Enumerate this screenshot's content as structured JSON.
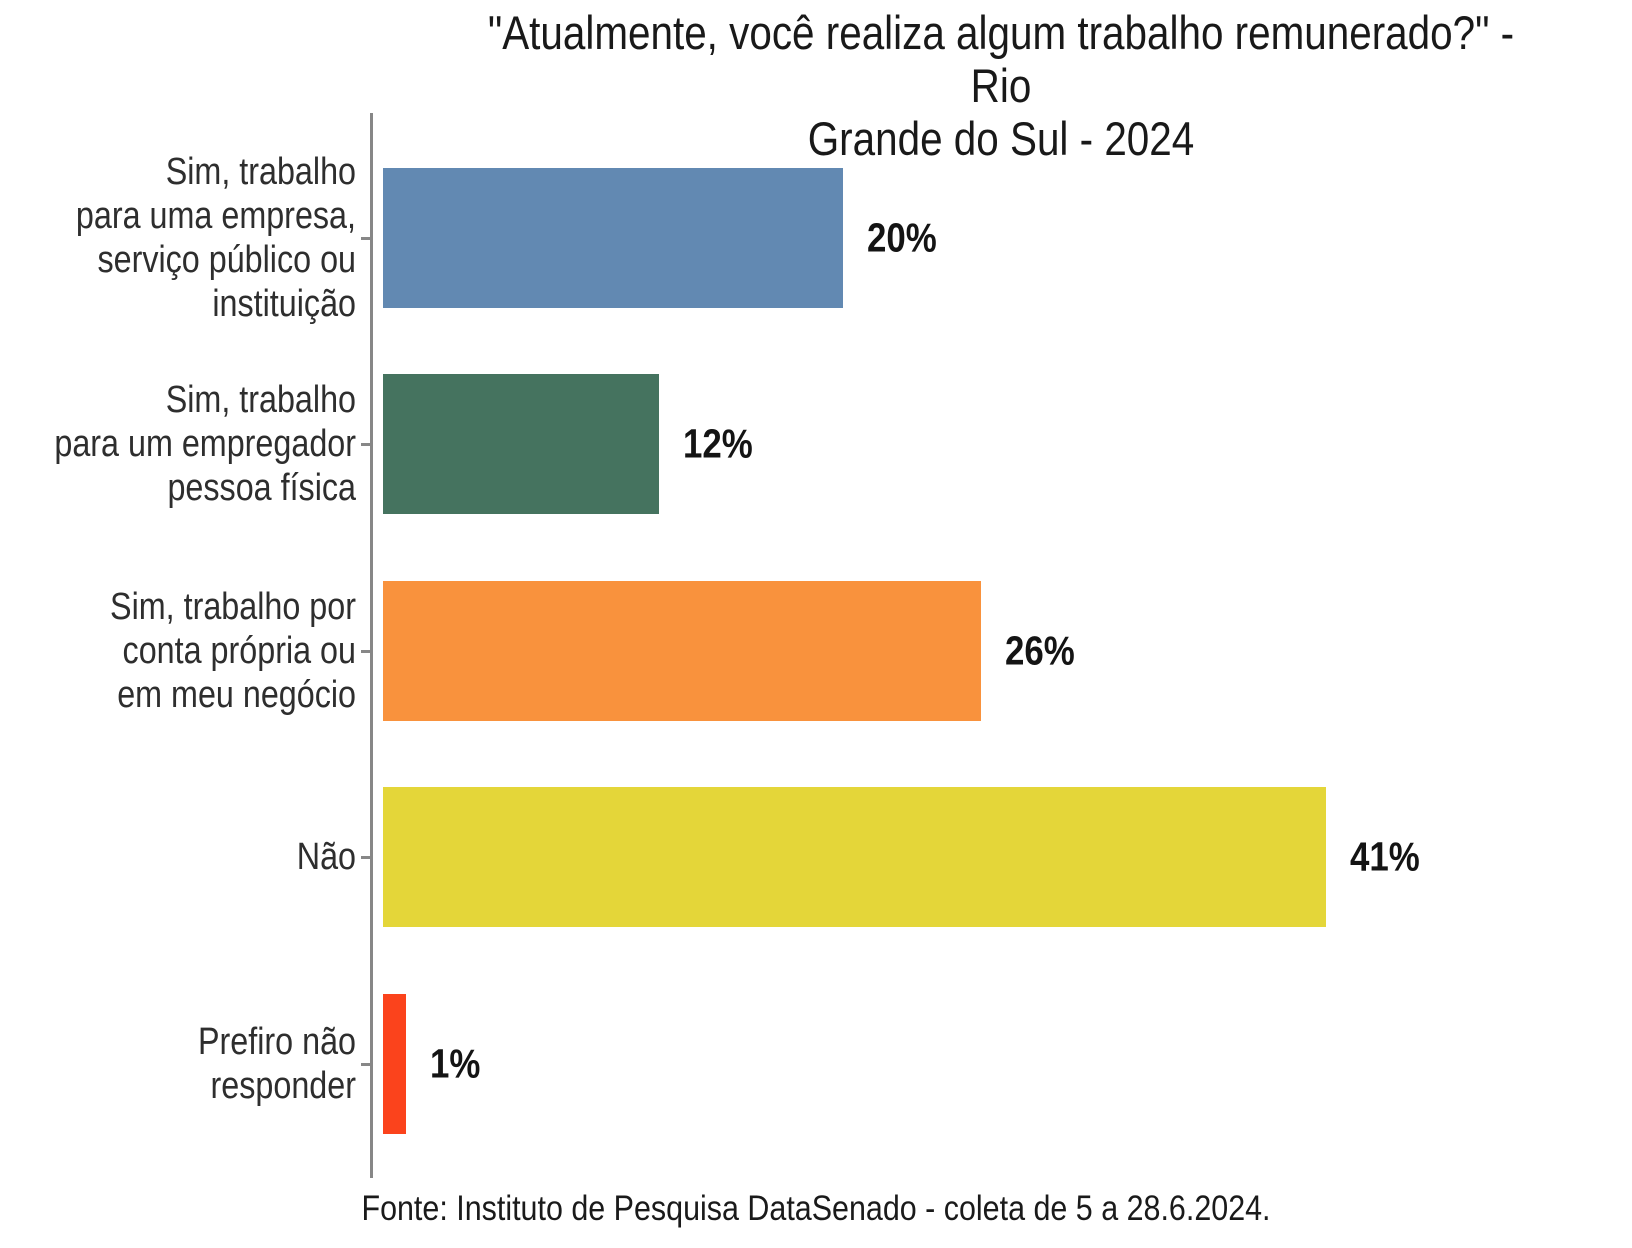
{
  "display": {
    "title_wrapped": "\"Atualmente, você realiza algum trabalho remunerado?\" - Rio\nGrande do Sul - 2024"
  },
  "chart_data": {
    "type": "bar",
    "orientation": "horizontal",
    "title": "\"Atualmente, você realiza algum trabalho remunerado?\" - Rio Grande do Sul - 2024",
    "caption": "Fonte: Instituto de Pesquisa DataSenado - coleta de 5 a 28.6.2024.",
    "unit": "%",
    "categories": [
      "Sim, trabalho para uma empresa, serviço público ou instituição",
      "Sim, trabalho para um empregador pessoa física",
      "Sim, trabalho por conta própria ou em meu negócio",
      "Não",
      "Prefiro não responder"
    ],
    "categories_wrapped": [
      "Sim, trabalho\npara uma empresa,\nserviço público ou\ninstituição",
      "Sim, trabalho\npara um empregador\npessoa física",
      "Sim, trabalho por\nconta própria ou\nem meu negócio",
      "Não",
      "Prefiro não\nresponder"
    ],
    "values": [
      20,
      12,
      26,
      41,
      1
    ],
    "value_labels": [
      "20%",
      "12%",
      "26%",
      "41%",
      "1%"
    ],
    "colors": [
      "#6289B2",
      "#45735F",
      "#F9923D",
      "#E4D639",
      "#FB431C"
    ],
    "xlim": [
      0,
      45
    ],
    "grid": false,
    "legend": false,
    "value_label_position": "right-of-bar"
  }
}
